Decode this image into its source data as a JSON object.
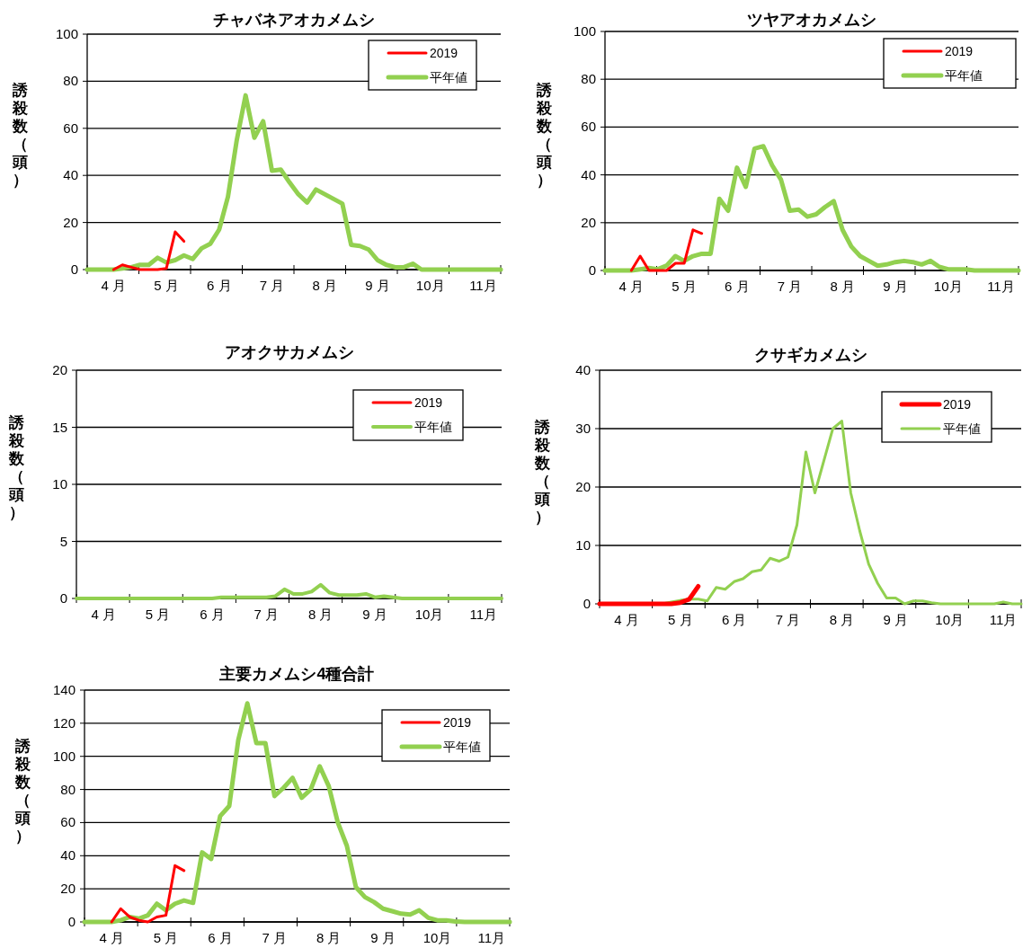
{
  "chart_data": [
    {
      "type": "line",
      "title": "チャバネアオカメムシ",
      "ylabel": "誘殺数（頭）",
      "ylim": [
        0,
        100
      ],
      "yticks": [
        0,
        20,
        40,
        60,
        80,
        100
      ],
      "grid": "y",
      "legend": "top right",
      "categories": [
        null,
        null,
        null,
        "4 月",
        null,
        null,
        null,
        null,
        null,
        "5 月",
        null,
        null,
        null,
        null,
        null,
        "6 月",
        null,
        null,
        null,
        null,
        null,
        "7 月",
        null,
        null,
        null,
        null,
        null,
        "8 月",
        null,
        null,
        null,
        null,
        null,
        "9 月",
        null,
        null,
        null,
        null,
        null,
        "10月",
        null,
        null,
        null,
        null,
        null,
        "11月",
        null,
        null
      ],
      "series": [
        {
          "name": "2019",
          "color": "#ff0000",
          "values": [
            null,
            null,
            null,
            0,
            2,
            1,
            0,
            0,
            0,
            0.5,
            16,
            12,
            null,
            null,
            null,
            null,
            null,
            null,
            null,
            null,
            null,
            null,
            null,
            null,
            null,
            null,
            null,
            null,
            null,
            null,
            null,
            null,
            null,
            null,
            null,
            null,
            null,
            null,
            null,
            null,
            null,
            null,
            null,
            null,
            null,
            null,
            null,
            null
          ]
        },
        {
          "name": "平年値",
          "color": "#92d050",
          "values": [
            0,
            0,
            0,
            0,
            0.5,
            1,
            2,
            2,
            5,
            3,
            4,
            6,
            4.5,
            9,
            11,
            17,
            31,
            55,
            74,
            56,
            63,
            42,
            42.5,
            37,
            32,
            28.5,
            34,
            32,
            30,
            28,
            10.5,
            10,
            8.5,
            4,
            2,
            1,
            1,
            2.5,
            0,
            0,
            0,
            0,
            0,
            0,
            0,
            0,
            0,
            0
          ]
        }
      ]
    },
    {
      "type": "line",
      "title": "ツヤアオカメムシ",
      "ylabel": "誘殺数（頭）",
      "ylim": [
        0,
        100
      ],
      "yticks": [
        0,
        20,
        40,
        60,
        80,
        100
      ],
      "grid": "y",
      "legend": "top right",
      "categories": [
        null,
        null,
        null,
        "4 月",
        null,
        null,
        null,
        null,
        null,
        "5 月",
        null,
        null,
        null,
        null,
        null,
        "6 月",
        null,
        null,
        null,
        null,
        null,
        "7 月",
        null,
        null,
        null,
        null,
        null,
        "8 月",
        null,
        null,
        null,
        null,
        null,
        "9 月",
        null,
        null,
        null,
        null,
        null,
        "10月",
        null,
        null,
        null,
        null,
        null,
        "11月",
        null,
        null
      ],
      "series": [
        {
          "name": "2019",
          "color": "#ff0000",
          "values": [
            null,
            null,
            null,
            0,
            6,
            0,
            0,
            0,
            3,
            3,
            17,
            15.5,
            null,
            null,
            null,
            null,
            null,
            null,
            null,
            null,
            null,
            null,
            null,
            null,
            null,
            null,
            null,
            null,
            null,
            null,
            null,
            null,
            null,
            null,
            null,
            null,
            null,
            null,
            null,
            null,
            null,
            null,
            null,
            null,
            null,
            null,
            null,
            null
          ]
        },
        {
          "name": "平年値",
          "color": "#92d050",
          "values": [
            0,
            0,
            0,
            0,
            0.5,
            1,
            0.5,
            2,
            6,
            4,
            6,
            7,
            7,
            30,
            25,
            43,
            35,
            51,
            52,
            44,
            38,
            25,
            25.5,
            22.5,
            23.5,
            26.5,
            29,
            17,
            10,
            6,
            4,
            2,
            2.5,
            3.5,
            4,
            3.5,
            2.5,
            4,
            1.5,
            0.5,
            0.5,
            0.5,
            0,
            0,
            0,
            0,
            0,
            0
          ]
        }
      ]
    },
    {
      "type": "line",
      "title": "アオクサカメムシ",
      "ylabel": "誘殺数（頭）",
      "ylim": [
        0,
        20
      ],
      "yticks": [
        0,
        5,
        10,
        15,
        20
      ],
      "grid": "y",
      "legend": "top right",
      "categories": [
        null,
        null,
        null,
        "4 月",
        null,
        null,
        null,
        null,
        null,
        "5 月",
        null,
        null,
        null,
        null,
        null,
        "6 月",
        null,
        null,
        null,
        null,
        null,
        "7 月",
        null,
        null,
        null,
        null,
        null,
        "8 月",
        null,
        null,
        null,
        null,
        null,
        "9 月",
        null,
        null,
        null,
        null,
        null,
        "10月",
        null,
        null,
        null,
        null,
        null,
        "11月",
        null,
        null
      ],
      "series": [
        {
          "name": "2019",
          "color": "#ff0000",
          "values": [
            null,
            null,
            null,
            null,
            null,
            null,
            null,
            null,
            null,
            null,
            null,
            null,
            null,
            null,
            null,
            null,
            null,
            null,
            null,
            null,
            null,
            null,
            null,
            null,
            null,
            null,
            null,
            null,
            null,
            null,
            null,
            null,
            null,
            null,
            null,
            null,
            null,
            null,
            null,
            null,
            null,
            null,
            null,
            null,
            null,
            null,
            null,
            null
          ]
        },
        {
          "name": "平年値",
          "color": "#92d050",
          "values": [
            0,
            0,
            0,
            0,
            0,
            0,
            0,
            0,
            0,
            0,
            0,
            0,
            0,
            0,
            0,
            0,
            0.1,
            0.1,
            0.1,
            0.1,
            0.1,
            0.1,
            0.2,
            0.8,
            0.4,
            0.4,
            0.6,
            1.2,
            0.5,
            0.3,
            0.3,
            0.3,
            0.4,
            0.1,
            0.2,
            0.1,
            0,
            0,
            0,
            0,
            0,
            0,
            0,
            0,
            0,
            0,
            0,
            0
          ]
        }
      ]
    },
    {
      "type": "line",
      "title": "クサギカメムシ",
      "ylabel": "誘殺数（頭）",
      "ylim": [
        0,
        40
      ],
      "yticks": [
        0,
        10,
        20,
        30,
        40
      ],
      "grid": "y",
      "legend": "top right",
      "categories": [
        null,
        null,
        null,
        "4 月",
        null,
        null,
        null,
        null,
        null,
        "5 月",
        null,
        null,
        null,
        null,
        null,
        "6 月",
        null,
        null,
        null,
        null,
        null,
        "7 月",
        null,
        null,
        null,
        null,
        null,
        "8 月",
        null,
        null,
        null,
        null,
        null,
        "9 月",
        null,
        null,
        null,
        null,
        null,
        "10月",
        null,
        null,
        null,
        null,
        null,
        "11月",
        null,
        null
      ],
      "series": [
        {
          "name": "2019",
          "color": "#ff0000",
          "values": [
            0,
            0,
            0,
            0,
            0,
            0,
            0,
            0,
            0,
            0.2,
            0.8,
            3,
            null,
            null,
            null,
            null,
            null,
            null,
            null,
            null,
            null,
            null,
            null,
            null,
            null,
            null,
            null,
            null,
            null,
            null,
            null,
            null,
            null,
            null,
            null,
            null,
            null,
            null,
            null,
            null,
            null,
            null,
            null,
            null,
            null,
            null,
            null,
            null
          ]
        },
        {
          "name": "平年値",
          "color": "#92d050",
          "values": [
            null,
            null,
            null,
            null,
            null,
            null,
            null,
            0,
            0.3,
            0.6,
            0.8,
            0.8,
            0.5,
            2.8,
            2.5,
            3.8,
            4.3,
            5.5,
            5.8,
            7.8,
            7.3,
            8,
            13.5,
            26,
            19,
            24.5,
            30,
            31.3,
            19,
            12.5,
            6.8,
            3.5,
            1,
            1,
            0,
            0.5,
            0.5,
            0.2,
            0,
            0,
            0,
            0,
            0,
            0,
            0,
            0.3,
            0,
            0
          ]
        }
      ]
    },
    {
      "type": "line",
      "title": "主要カメムシ4種合計",
      "ylabel": "誘殺数（頭）",
      "ylim": [
        0,
        140
      ],
      "yticks": [
        0,
        20,
        40,
        60,
        80,
        100,
        120,
        140
      ],
      "grid": "y",
      "legend": "top right",
      "categories": [
        null,
        null,
        null,
        "4 月",
        null,
        null,
        null,
        null,
        null,
        "5 月",
        null,
        null,
        null,
        null,
        null,
        "6 月",
        null,
        null,
        null,
        null,
        null,
        "7 月",
        null,
        null,
        null,
        null,
        null,
        "8 月",
        null,
        null,
        null,
        null,
        null,
        "9 月",
        null,
        null,
        null,
        null,
        null,
        "10月",
        null,
        null,
        null,
        null,
        null,
        "11月",
        null,
        null
      ],
      "series": [
        {
          "name": "2019",
          "color": "#ff0000",
          "values": [
            null,
            null,
            null,
            0,
            8,
            3,
            1,
            0,
            3,
            4,
            34,
            31,
            null,
            null,
            null,
            null,
            null,
            null,
            null,
            null,
            null,
            null,
            null,
            null,
            null,
            null,
            null,
            null,
            null,
            null,
            null,
            null,
            null,
            null,
            null,
            null,
            null,
            null,
            null,
            null,
            null,
            null,
            null,
            null,
            null,
            null,
            null,
            null
          ]
        },
        {
          "name": "平年値",
          "color": "#92d050",
          "values": [
            0,
            0,
            0,
            0,
            1,
            3,
            2,
            4,
            11,
            7,
            11,
            13,
            11.5,
            42,
            38,
            64,
            70,
            110,
            132,
            108,
            108,
            76,
            81,
            87,
            75,
            80,
            94,
            82,
            60,
            46,
            21,
            15,
            12,
            8,
            6.5,
            5,
            4.5,
            7,
            2.5,
            1,
            1,
            0.3,
            0,
            0,
            0,
            0,
            0,
            0
          ]
        }
      ]
    }
  ]
}
